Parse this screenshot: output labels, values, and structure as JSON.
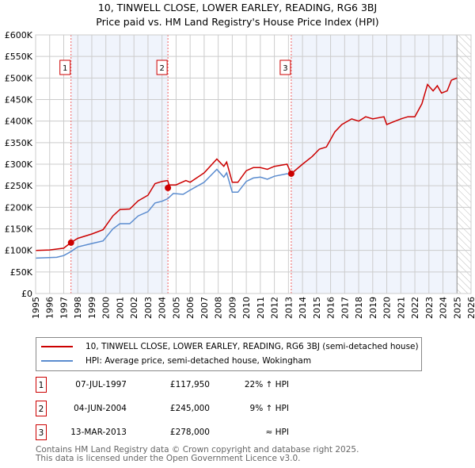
{
  "chart_data": {
    "type": "line",
    "title": "10, TINWELL CLOSE, LOWER EARLEY, READING, RG6 3BJ",
    "subtitle": "Price paid vs. HM Land Registry's House Price Index (HPI)",
    "xlim": [
      1995,
      2026
    ],
    "ylim": [
      0,
      600000
    ],
    "x_ticks": [
      "1995",
      "1996",
      "1997",
      "1998",
      "1999",
      "2000",
      "2001",
      "2002",
      "2003",
      "2004",
      "2005",
      "2006",
      "2007",
      "2008",
      "2009",
      "2010",
      "2011",
      "2012",
      "2013",
      "2014",
      "2015",
      "2016",
      "2017",
      "2018",
      "2019",
      "2020",
      "2021",
      "2022",
      "2023",
      "2024",
      "2025",
      "2026"
    ],
    "y_ticks": [
      {
        "v": 0,
        "label": "£0"
      },
      {
        "v": 50000,
        "label": "£50K"
      },
      {
        "v": 100000,
        "label": "£100K"
      },
      {
        "v": 150000,
        "label": "£150K"
      },
      {
        "v": 200000,
        "label": "£200K"
      },
      {
        "v": 250000,
        "label": "£250K"
      },
      {
        "v": 300000,
        "label": "£300K"
      },
      {
        "v": 350000,
        "label": "£350K"
      },
      {
        "v": 400000,
        "label": "£400K"
      },
      {
        "v": 450000,
        "label": "£450K"
      },
      {
        "v": 500000,
        "label": "£500K"
      },
      {
        "v": 550000,
        "label": "£550K"
      },
      {
        "v": 600000,
        "label": "£600K"
      }
    ],
    "grid": true,
    "series": [
      {
        "name": "10, TINWELL CLOSE, LOWER EARLEY, READING, RG6 3BJ (semi-detached house)",
        "color": "#cc0000",
        "x": [
          1995,
          1996,
          1997,
          1997.5,
          1998,
          1999,
          1999.8,
          2000.5,
          2001,
          2001.7,
          2002.3,
          2003,
          2003.5,
          2004,
          2004.4,
          2004.5,
          2005,
          2005.7,
          2006,
          2007,
          2007.9,
          2008.4,
          2008.6,
          2009,
          2009.4,
          2010,
          2010.5,
          2011,
          2011.5,
          2012,
          2012.9,
          2013.2,
          2014,
          2014.7,
          2015.2,
          2015.7,
          2016.3,
          2016.8,
          2017.5,
          2018,
          2018.5,
          2019,
          2019.8,
          2020,
          2020.6,
          2021,
          2021.5,
          2022,
          2022.5,
          2022.9,
          2023.3,
          2023.6,
          2023.9,
          2024.3,
          2024.6,
          2025
        ],
        "y": [
          100000,
          101000,
          105000,
          118000,
          128000,
          138000,
          148000,
          180000,
          195000,
          196000,
          215000,
          228000,
          255000,
          260000,
          262000,
          252000,
          252000,
          262000,
          258000,
          280000,
          312000,
          295000,
          305000,
          258000,
          258000,
          285000,
          292000,
          292000,
          288000,
          295000,
          300000,
          278000,
          300000,
          318000,
          335000,
          340000,
          375000,
          392000,
          405000,
          400000,
          410000,
          405000,
          410000,
          392000,
          400000,
          405000,
          410000,
          410000,
          440000,
          485000,
          470000,
          482000,
          465000,
          470000,
          495000,
          500000
        ]
      },
      {
        "name": "HPI: Average price, semi-detached house, Wokingham",
        "color": "#5b8ccf",
        "x": [
          1995,
          1996.5,
          1997,
          1997.5,
          1998,
          1999,
          1999.8,
          2000.5,
          2001,
          2001.7,
          2002.3,
          2003,
          2003.5,
          2004,
          2004.4,
          2004.8,
          2005.5,
          2006,
          2007,
          2007.9,
          2008.4,
          2008.6,
          2009,
          2009.4,
          2010,
          2010.5,
          2011,
          2011.5,
          2012,
          2012.9,
          2013.2
        ],
        "y": [
          82000,
          84000,
          88000,
          97000,
          108000,
          116000,
          122000,
          150000,
          162000,
          162000,
          180000,
          190000,
          210000,
          214000,
          220000,
          232000,
          230000,
          240000,
          258000,
          288000,
          270000,
          280000,
          235000,
          235000,
          260000,
          268000,
          270000,
          265000,
          272000,
          278000,
          275000
        ]
      }
    ],
    "sales": [
      {
        "id": "1",
        "x": 1997.52,
        "price": 117950,
        "date": "07-JUL-1997",
        "price_label": "£117,950",
        "hpi": "22% ↑ HPI"
      },
      {
        "id": "2",
        "x": 2004.42,
        "price": 245000,
        "date": "04-JUN-2004",
        "price_label": "£245,000",
        "hpi": "9% ↑ HPI"
      },
      {
        "id": "3",
        "x": 2013.2,
        "price": 278000,
        "date": "13-MAR-2013",
        "price_label": "£278,000",
        "hpi": "≈ HPI"
      }
    ],
    "forecast_hatch_from": 2025
  },
  "legend": {
    "property": "10, TINWELL CLOSE, LOWER EARLEY, READING, RG6 3BJ (semi-detached house)",
    "hpi": "HPI: Average price, semi-detached house, Wokingham"
  },
  "footer": {
    "line1": "Contains HM Land Registry data © Crown copyright and database right 2025.",
    "line2": "This data is licensed under the Open Government Licence v3.0."
  }
}
